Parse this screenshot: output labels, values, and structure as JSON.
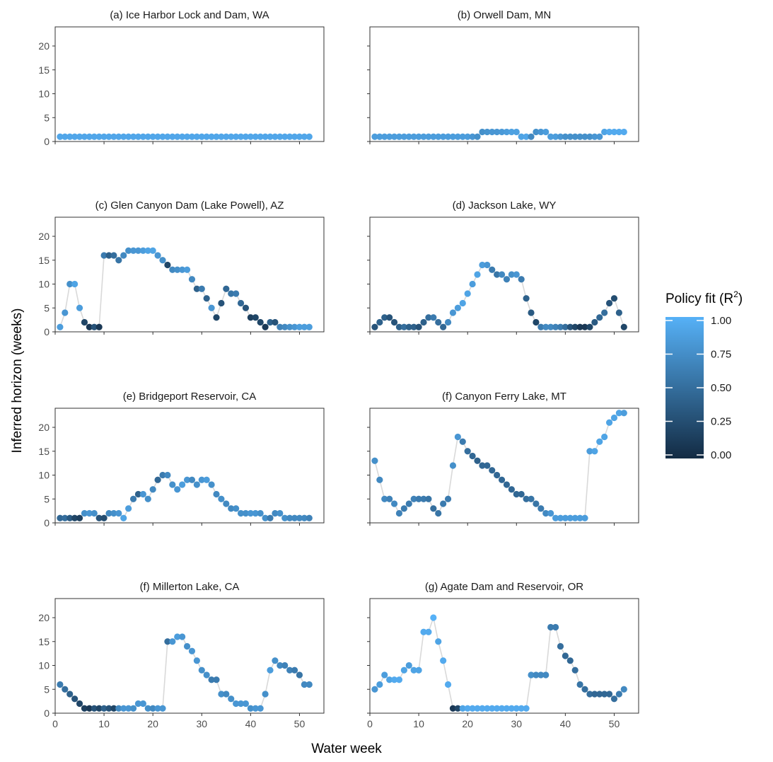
{
  "figure": {
    "ylabel": "Inferred horizon (weeks)",
    "xlabel": "Water week",
    "legend_title_main": "Policy fit (R",
    "legend_title_sup": "2",
    "legend_title_end": ")",
    "legend_ticks": [
      "1.00",
      "0.75",
      "0.50",
      "0.25",
      "0.00"
    ],
    "colors": {
      "low": "#132B43",
      "high": "#56B1F7",
      "connector": "#d9d9d9",
      "panel_border": "#333333"
    }
  },
  "chart_data": [
    {
      "type": "scatter",
      "title": "(a) Ice Harbor Lock and Dam, WA",
      "x": [
        1,
        2,
        3,
        4,
        5,
        6,
        7,
        8,
        9,
        10,
        11,
        12,
        13,
        14,
        15,
        16,
        17,
        18,
        19,
        20,
        21,
        22,
        23,
        24,
        25,
        26,
        27,
        28,
        29,
        30,
        31,
        32,
        33,
        34,
        35,
        36,
        37,
        38,
        39,
        40,
        41,
        42,
        43,
        44,
        45,
        46,
        47,
        48,
        49,
        50,
        51,
        52
      ],
      "y": [
        1,
        1,
        1,
        1,
        1,
        1,
        1,
        1,
        1,
        1,
        1,
        1,
        1,
        1,
        1,
        1,
        1,
        1,
        1,
        1,
        1,
        1,
        1,
        1,
        1,
        1,
        1,
        1,
        1,
        1,
        1,
        1,
        1,
        1,
        1,
        1,
        1,
        1,
        1,
        1,
        1,
        1,
        1,
        1,
        1,
        1,
        1,
        1,
        1,
        1,
        1,
        1
      ],
      "r2": [
        0.92,
        0.92,
        0.92,
        0.92,
        0.92,
        0.92,
        0.92,
        0.92,
        0.92,
        0.92,
        0.92,
        0.92,
        0.92,
        0.92,
        0.92,
        0.92,
        0.92,
        0.92,
        0.92,
        0.92,
        0.92,
        0.92,
        0.92,
        0.92,
        0.92,
        0.92,
        0.92,
        0.92,
        0.92,
        0.92,
        0.92,
        0.92,
        0.92,
        0.92,
        0.92,
        0.92,
        0.92,
        0.92,
        0.92,
        0.92,
        0.92,
        0.92,
        0.92,
        0.92,
        0.92,
        0.92,
        0.92,
        0.92,
        0.92,
        0.92,
        0.92,
        0.92
      ],
      "xlim": [
        0,
        55
      ],
      "ylim": [
        0,
        24
      ],
      "xticks": [
        0,
        10,
        20,
        30,
        40,
        50
      ],
      "yticks": [
        0,
        5,
        10,
        15,
        20
      ],
      "show_x_tick_labels": false,
      "show_y_tick_labels": true
    },
    {
      "type": "scatter",
      "title": "(b) Orwell Dam, MN",
      "x": [
        1,
        2,
        3,
        4,
        5,
        6,
        7,
        8,
        9,
        10,
        11,
        12,
        13,
        14,
        15,
        16,
        17,
        18,
        19,
        20,
        21,
        22,
        23,
        24,
        25,
        26,
        27,
        28,
        29,
        30,
        31,
        32,
        33,
        34,
        35,
        36,
        37,
        38,
        39,
        40,
        41,
        42,
        43,
        44,
        45,
        46,
        47,
        48,
        49,
        50,
        51,
        52
      ],
      "y": [
        1,
        1,
        1,
        1,
        1,
        1,
        1,
        1,
        1,
        1,
        1,
        1,
        1,
        1,
        1,
        1,
        1,
        1,
        1,
        1,
        1,
        1,
        2,
        2,
        2,
        2,
        2,
        2,
        2,
        2,
        1,
        1,
        1,
        2,
        2,
        2,
        1,
        1,
        1,
        1,
        1,
        1,
        1,
        1,
        1,
        1,
        1,
        2,
        2,
        2,
        2,
        2
      ],
      "r2": [
        0.85,
        0.85,
        0.85,
        0.85,
        0.85,
        0.85,
        0.85,
        0.85,
        0.85,
        0.85,
        0.85,
        0.85,
        0.85,
        0.85,
        0.85,
        0.85,
        0.85,
        0.85,
        0.85,
        0.85,
        0.8,
        0.75,
        0.75,
        0.78,
        0.8,
        0.8,
        0.82,
        0.85,
        0.88,
        0.88,
        0.9,
        0.92,
        0.7,
        0.75,
        0.8,
        0.85,
        0.85,
        0.85,
        0.8,
        0.75,
        0.75,
        0.75,
        0.75,
        0.75,
        0.75,
        0.8,
        0.8,
        0.9,
        0.95,
        0.95,
        0.95,
        0.95
      ],
      "xlim": [
        0,
        55
      ],
      "ylim": [
        0,
        24
      ],
      "xticks": [
        0,
        10,
        20,
        30,
        40,
        50
      ],
      "yticks": [
        0,
        5,
        10,
        15,
        20
      ],
      "show_x_tick_labels": false,
      "show_y_tick_labels": false
    },
    {
      "type": "scatter",
      "title": "(c) Glen Canyon Dam (Lake Powell), AZ",
      "x": [
        1,
        2,
        3,
        4,
        5,
        6,
        7,
        8,
        9,
        10,
        11,
        12,
        13,
        14,
        15,
        16,
        17,
        18,
        19,
        20,
        21,
        22,
        23,
        24,
        25,
        26,
        27,
        28,
        29,
        30,
        31,
        32,
        33,
        34,
        35,
        36,
        37,
        38,
        39,
        40,
        41,
        42,
        43,
        44,
        45,
        46,
        47,
        48,
        49,
        50,
        51,
        52
      ],
      "y": [
        1,
        4,
        10,
        10,
        5,
        2,
        1,
        1,
        1,
        16,
        16,
        16,
        15,
        16,
        17,
        17,
        17,
        17,
        17,
        17,
        16,
        15,
        14,
        13,
        13,
        13,
        13,
        11,
        9,
        9,
        7,
        5,
        3,
        6,
        9,
        8,
        8,
        6,
        5,
        3,
        3,
        2,
        1,
        2,
        2,
        1,
        1,
        1,
        1,
        1,
        1,
        1
      ],
      "r2": [
        0.85,
        0.8,
        0.75,
        0.9,
        0.85,
        0.2,
        0.1,
        0.3,
        0.1,
        0.6,
        0.4,
        0.5,
        0.55,
        0.7,
        0.75,
        0.8,
        0.8,
        0.85,
        0.9,
        0.9,
        0.8,
        0.75,
        0.2,
        0.7,
        0.75,
        0.8,
        0.85,
        0.7,
        0.4,
        0.6,
        0.4,
        0.8,
        0.2,
        0.3,
        0.45,
        0.55,
        0.6,
        0.45,
        0.3,
        0.15,
        0.2,
        0.2,
        0.1,
        0.4,
        0.3,
        0.65,
        0.7,
        0.75,
        0.8,
        0.85,
        0.85,
        0.85
      ],
      "xlim": [
        0,
        55
      ],
      "ylim": [
        0,
        24
      ],
      "xticks": [
        0,
        10,
        20,
        30,
        40,
        50
      ],
      "yticks": [
        0,
        5,
        10,
        15,
        20
      ],
      "show_x_tick_labels": false,
      "show_y_tick_labels": true
    },
    {
      "type": "scatter",
      "title": "(d) Jackson Lake, WY",
      "x": [
        1,
        2,
        3,
        4,
        5,
        6,
        7,
        8,
        9,
        10,
        11,
        12,
        13,
        14,
        15,
        16,
        17,
        18,
        19,
        20,
        21,
        22,
        23,
        24,
        25,
        26,
        27,
        28,
        29,
        30,
        31,
        32,
        33,
        34,
        35,
        36,
        37,
        38,
        39,
        40,
        41,
        42,
        43,
        44,
        45,
        46,
        47,
        48,
        49,
        50,
        51,
        52
      ],
      "y": [
        1,
        2,
        3,
        3,
        2,
        1,
        1,
        1,
        1,
        1,
        2,
        3,
        3,
        2,
        1,
        2,
        4,
        5,
        6,
        8,
        10,
        12,
        14,
        14,
        13,
        12,
        12,
        11,
        12,
        12,
        11,
        7,
        4,
        2,
        1,
        1,
        1,
        1,
        1,
        1,
        1,
        1,
        1,
        1,
        1,
        2,
        3,
        4,
        6,
        7,
        4,
        1
      ],
      "r2": [
        0.3,
        0.4,
        0.4,
        0.3,
        0.3,
        0.4,
        0.5,
        0.4,
        0.4,
        0.3,
        0.4,
        0.5,
        0.6,
        0.5,
        0.45,
        0.7,
        0.8,
        0.85,
        0.9,
        0.9,
        0.85,
        0.9,
        0.85,
        0.8,
        0.6,
        0.55,
        0.7,
        0.65,
        0.75,
        0.8,
        0.6,
        0.4,
        0.35,
        0.2,
        0.6,
        0.7,
        0.7,
        0.65,
        0.6,
        0.5,
        0.3,
        0.2,
        0.1,
        0.1,
        0.2,
        0.35,
        0.45,
        0.5,
        0.3,
        0.25,
        0.4,
        0.2
      ],
      "xlim": [
        0,
        55
      ],
      "ylim": [
        0,
        24
      ],
      "xticks": [
        0,
        10,
        20,
        30,
        40,
        50
      ],
      "yticks": [
        0,
        5,
        10,
        15,
        20
      ],
      "show_x_tick_labels": false,
      "show_y_tick_labels": false
    },
    {
      "type": "scatter",
      "title": "(e) Bridgeport Reservoir, CA",
      "x": [
        1,
        2,
        3,
        4,
        5,
        6,
        7,
        8,
        9,
        10,
        11,
        12,
        13,
        14,
        15,
        16,
        17,
        18,
        19,
        20,
        21,
        22,
        23,
        24,
        25,
        26,
        27,
        28,
        29,
        30,
        31,
        32,
        33,
        34,
        35,
        36,
        37,
        38,
        39,
        40,
        41,
        42,
        43,
        44,
        45,
        46,
        47,
        48,
        49,
        50,
        51,
        52
      ],
      "y": [
        1,
        1,
        1,
        1,
        1,
        2,
        2,
        2,
        1,
        1,
        2,
        2,
        2,
        1,
        3,
        5,
        6,
        6,
        5,
        7,
        9,
        10,
        10,
        8,
        7,
        8,
        9,
        9,
        8,
        9,
        9,
        8,
        6,
        5,
        4,
        3,
        3,
        2,
        2,
        2,
        2,
        2,
        1,
        1,
        2,
        2,
        1,
        1,
        1,
        1,
        1,
        1
      ],
      "r2": [
        0.45,
        0.5,
        0.35,
        0.2,
        0.15,
        0.75,
        0.8,
        0.75,
        0.3,
        0.25,
        0.7,
        0.75,
        0.8,
        0.9,
        0.85,
        0.6,
        0.4,
        0.8,
        0.75,
        0.7,
        0.45,
        0.6,
        0.7,
        0.75,
        0.8,
        0.85,
        0.8,
        0.7,
        0.75,
        0.8,
        0.85,
        0.75,
        0.7,
        0.75,
        0.7,
        0.7,
        0.75,
        0.75,
        0.75,
        0.8,
        0.8,
        0.75,
        0.75,
        0.6,
        0.7,
        0.75,
        0.75,
        0.7,
        0.7,
        0.7,
        0.7,
        0.65
      ],
      "xlim": [
        0,
        55
      ],
      "ylim": [
        0,
        24
      ],
      "xticks": [
        0,
        10,
        20,
        30,
        40,
        50
      ],
      "yticks": [
        0,
        5,
        10,
        15,
        20
      ],
      "show_x_tick_labels": false,
      "show_y_tick_labels": true
    },
    {
      "type": "scatter",
      "title": "(f) Canyon Ferry Lake, MT",
      "x": [
        1,
        2,
        3,
        4,
        5,
        6,
        7,
        8,
        9,
        10,
        11,
        12,
        13,
        14,
        15,
        16,
        17,
        18,
        19,
        20,
        21,
        22,
        23,
        24,
        25,
        26,
        27,
        28,
        29,
        30,
        31,
        32,
        33,
        34,
        35,
        36,
        37,
        38,
        39,
        40,
        41,
        42,
        43,
        44,
        45,
        46,
        47,
        48,
        49,
        50,
        51,
        52
      ],
      "y": [
        13,
        9,
        5,
        5,
        4,
        2,
        3,
        4,
        5,
        5,
        5,
        5,
        3,
        2,
        4,
        5,
        12,
        18,
        17,
        15,
        14,
        13,
        12,
        12,
        11,
        10,
        9,
        8,
        7,
        6,
        6,
        5,
        5,
        4,
        3,
        2,
        2,
        1,
        1,
        1,
        1,
        1,
        1,
        1,
        15,
        15,
        17,
        18,
        21,
        22,
        23,
        23
      ],
      "r2": [
        0.75,
        0.7,
        0.7,
        0.65,
        0.7,
        0.65,
        0.6,
        0.6,
        0.65,
        0.6,
        0.6,
        0.55,
        0.5,
        0.55,
        0.6,
        0.6,
        0.75,
        0.8,
        0.6,
        0.5,
        0.45,
        0.4,
        0.45,
        0.45,
        0.45,
        0.45,
        0.45,
        0.45,
        0.45,
        0.45,
        0.45,
        0.5,
        0.55,
        0.55,
        0.6,
        0.7,
        0.8,
        0.85,
        0.85,
        0.85,
        0.85,
        0.85,
        0.85,
        0.85,
        0.85,
        0.9,
        0.9,
        0.9,
        0.9,
        0.9,
        0.9,
        0.85
      ],
      "xlim": [
        0,
        55
      ],
      "ylim": [
        0,
        24
      ],
      "xticks": [
        0,
        10,
        20,
        30,
        40,
        50
      ],
      "yticks": [
        0,
        5,
        10,
        15,
        20
      ],
      "show_x_tick_labels": false,
      "show_y_tick_labels": false
    },
    {
      "type": "scatter",
      "title": "(f) Millerton Lake, CA",
      "x": [
        1,
        2,
        3,
        4,
        5,
        6,
        7,
        8,
        9,
        10,
        11,
        12,
        13,
        14,
        15,
        16,
        17,
        18,
        19,
        20,
        21,
        22,
        23,
        24,
        25,
        26,
        27,
        28,
        29,
        30,
        31,
        32,
        33,
        34,
        35,
        36,
        37,
        38,
        39,
        40,
        41,
        42,
        43,
        44,
        45,
        46,
        47,
        48,
        49,
        50,
        51,
        52
      ],
      "y": [
        6,
        5,
        4,
        3,
        2,
        1,
        1,
        1,
        1,
        1,
        1,
        1,
        1,
        1,
        1,
        1,
        2,
        2,
        1,
        1,
        1,
        1,
        15,
        15,
        16,
        16,
        14,
        13,
        11,
        9,
        8,
        7,
        7,
        4,
        4,
        3,
        2,
        2,
        2,
        1,
        1,
        1,
        4,
        9,
        11,
        10,
        10,
        9,
        9,
        8,
        6,
        6
      ],
      "r2": [
        0.6,
        0.5,
        0.4,
        0.3,
        0.2,
        0.15,
        0.1,
        0.3,
        0.2,
        0.4,
        0.3,
        0.2,
        0.7,
        0.8,
        0.8,
        0.75,
        0.8,
        0.8,
        0.75,
        0.7,
        0.8,
        0.8,
        0.5,
        0.8,
        0.85,
        0.8,
        0.75,
        0.8,
        0.8,
        0.75,
        0.75,
        0.6,
        0.6,
        0.75,
        0.7,
        0.75,
        0.8,
        0.8,
        0.8,
        0.75,
        0.8,
        0.8,
        0.75,
        0.85,
        0.75,
        0.7,
        0.65,
        0.65,
        0.6,
        0.55,
        0.7,
        0.7
      ],
      "xlim": [
        0,
        55
      ],
      "ylim": [
        0,
        24
      ],
      "xticks": [
        0,
        10,
        20,
        30,
        40,
        50
      ],
      "yticks": [
        0,
        5,
        10,
        15,
        20
      ],
      "show_x_tick_labels": true,
      "show_y_tick_labels": true
    },
    {
      "type": "scatter",
      "title": "(g) Agate Dam and Reservoir, OR",
      "x": [
        1,
        2,
        3,
        4,
        5,
        6,
        7,
        8,
        9,
        10,
        11,
        12,
        13,
        14,
        15,
        16,
        17,
        18,
        19,
        20,
        21,
        22,
        23,
        24,
        25,
        26,
        27,
        28,
        29,
        30,
        31,
        32,
        33,
        34,
        35,
        36,
        37,
        38,
        39,
        40,
        41,
        42,
        43,
        44,
        45,
        46,
        47,
        48,
        49,
        50,
        51,
        52
      ],
      "y": [
        5,
        6,
        8,
        7,
        7,
        7,
        9,
        10,
        9,
        9,
        17,
        17,
        20,
        15,
        11,
        6,
        1,
        1,
        1,
        1,
        1,
        1,
        1,
        1,
        1,
        1,
        1,
        1,
        1,
        1,
        1,
        1,
        8,
        8,
        8,
        8,
        18,
        18,
        14,
        12,
        11,
        9,
        6,
        5,
        4,
        4,
        4,
        4,
        4,
        3,
        4,
        5
      ],
      "r2": [
        0.8,
        0.85,
        0.85,
        0.9,
        0.95,
        0.95,
        0.9,
        0.85,
        0.9,
        0.9,
        0.95,
        0.95,
        1.0,
        0.9,
        0.95,
        0.95,
        0.1,
        0.2,
        0.9,
        0.95,
        0.95,
        0.95,
        0.95,
        0.95,
        0.95,
        0.95,
        0.95,
        0.95,
        0.95,
        0.95,
        0.95,
        0.95,
        0.75,
        0.7,
        0.7,
        0.7,
        0.6,
        0.6,
        0.5,
        0.45,
        0.45,
        0.5,
        0.55,
        0.5,
        0.5,
        0.45,
        0.45,
        0.45,
        0.45,
        0.5,
        0.6,
        0.7
      ],
      "xlim": [
        0,
        55
      ],
      "ylim": [
        0,
        24
      ],
      "xticks": [
        0,
        10,
        20,
        30,
        40,
        50
      ],
      "yticks": [
        0,
        5,
        10,
        15,
        20
      ],
      "show_x_tick_labels": true,
      "show_y_tick_labels": false
    }
  ]
}
